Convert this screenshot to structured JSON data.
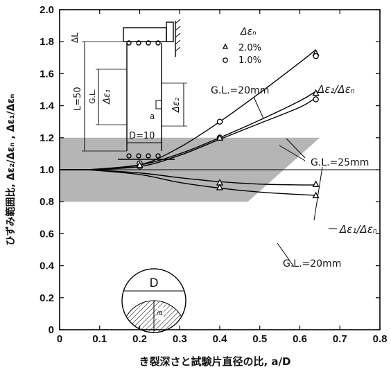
{
  "chart_data": {
    "type": "line",
    "xlabel": "き裂深さと試験片直径の比, a/D",
    "ylabel": "ひずみ範囲比,  Δε₂/Δεₙ ,  Δε₁/Δεₙ",
    "xlim": [
      0,
      0.8
    ],
    "ylim": [
      0,
      2.0
    ],
    "xticks": [
      "0",
      "0.1",
      "0.2",
      "0.3",
      "0.4",
      "0.5",
      "0.6",
      "0.7",
      "0.8"
    ],
    "yticks": [
      "0",
      "0.2",
      "0.4",
      "0.6",
      "0.8",
      "1.0",
      "1.2",
      "1.4",
      "1.6",
      "1.8",
      "2.0"
    ],
    "legend": {
      "title": "Δεₙ",
      "position": "top-right",
      "entries": [
        {
          "marker": "triangle",
          "label": "2.0%"
        },
        {
          "marker": "circle",
          "label": "1.0%"
        }
      ]
    },
    "shaded_band": {
      "y_range": [
        0.8,
        1.2
      ],
      "x_range": [
        0,
        0.5
      ]
    },
    "series": [
      {
        "curve": "upper",
        "group": "Δε₂/Δεₙ",
        "gl": "G.L.=20mm",
        "line_x": [
          0.07,
          0.2,
          0.3,
          0.4,
          0.5,
          0.6,
          0.64
        ],
        "line_y": [
          1.0,
          1.03,
          1.14,
          1.3,
          1.48,
          1.67,
          1.75
        ]
      },
      {
        "curve": "mid-a",
        "group": "Δε₂/Δεₙ",
        "gl": "G.L.=25mm",
        "line_x": [
          0.07,
          0.2,
          0.3,
          0.4,
          0.5,
          0.6,
          0.64
        ],
        "line_y": [
          1.0,
          1.03,
          1.1,
          1.2,
          1.31,
          1.43,
          1.49
        ]
      },
      {
        "curve": "mid-b",
        "group": "Δε₂/Δεₙ",
        "gl": "G.L.=25mm",
        "line_x": [
          0.07,
          0.2,
          0.3,
          0.4,
          0.5,
          0.6,
          0.64
        ],
        "line_y": [
          1.0,
          1.02,
          1.09,
          1.19,
          1.29,
          1.39,
          1.45
        ]
      },
      {
        "curve": "low-a",
        "group": "Δε₁/Δεₙ",
        "gl": "G.L.=25mm",
        "line_x": [
          0.07,
          0.2,
          0.3,
          0.4,
          0.5,
          0.6,
          0.64
        ],
        "line_y": [
          1.0,
          0.98,
          0.95,
          0.925,
          0.91,
          0.905,
          0.905
        ]
      },
      {
        "curve": "low-b",
        "group": "Δε₁/Δεₙ",
        "gl": "G.L.=20mm",
        "line_x": [
          0.07,
          0.2,
          0.3,
          0.4,
          0.5,
          0.6,
          0.64
        ],
        "line_y": [
          1.0,
          0.97,
          0.92,
          0.885,
          0.86,
          0.845,
          0.84
        ]
      }
    ],
    "points": [
      {
        "marker": "circle",
        "x": 0.2,
        "y": 1.04
      },
      {
        "marker": "circle",
        "x": 0.2,
        "y": 1.02
      },
      {
        "marker": "triangle",
        "x": 0.2,
        "y": 1.03
      },
      {
        "marker": "circle",
        "x": 0.4,
        "y": 1.3
      },
      {
        "marker": "circle",
        "x": 0.4,
        "y": 1.2
      },
      {
        "marker": "triangle",
        "x": 0.4,
        "y": 1.2
      },
      {
        "marker": "triangle",
        "x": 0.4,
        "y": 0.92
      },
      {
        "marker": "triangle",
        "x": 0.4,
        "y": 0.89
      },
      {
        "marker": "triangle",
        "x": 0.64,
        "y": 1.73
      },
      {
        "marker": "circle",
        "x": 0.64,
        "y": 1.71
      },
      {
        "marker": "triangle",
        "x": 0.64,
        "y": 1.48
      },
      {
        "marker": "circle",
        "x": 0.64,
        "y": 1.44
      },
      {
        "marker": "triangle",
        "x": 0.64,
        "y": 0.91
      },
      {
        "marker": "triangle",
        "x": 0.64,
        "y": 0.84
      }
    ],
    "annotations": {
      "gl20_upper": "G.L.=20mm",
      "ratio2": "Δε₂/Δεₙ",
      "gl25": "G.L.=25mm",
      "ratio1": "Δε₁/Δεₙ",
      "gl20_lower": "G.L.=20mm"
    },
    "inset_specimen": {
      "dl": "ΔL",
      "length": "L=50",
      "gl": "G.L.",
      "eps1": "Δε₁",
      "eps2": "Δε₂",
      "crack": "a",
      "diameter": "D=10"
    },
    "inset_section": {
      "diameter": "D",
      "crack": "a"
    }
  }
}
